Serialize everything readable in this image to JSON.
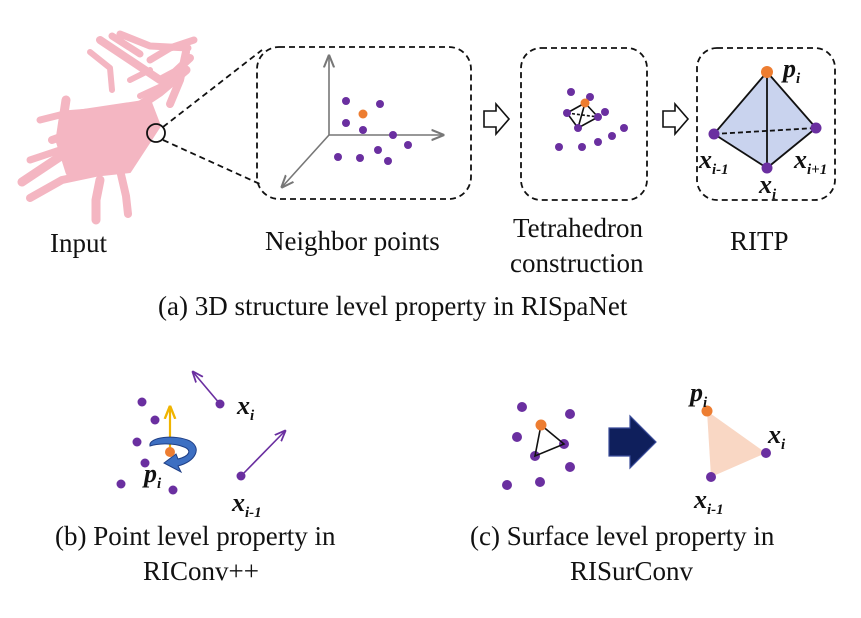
{
  "top_row": {
    "input_label": "Input",
    "neighbor_label": "Neighbor points",
    "tetra_label_line1": "Tetrahedron",
    "tetra_label_line2": "construction",
    "ritp_label": "RITP",
    "caption": "(a) 3D structure level property in RISpaNet"
  },
  "panel_b": {
    "caption_line1": "(b) Point level property in",
    "caption_line2": "RIConv++"
  },
  "panel_c": {
    "caption_line1": "(c) Surface level property in",
    "caption_line2": "RISurConv"
  },
  "symbols": {
    "p": "p",
    "x": "x",
    "sub_i": "i",
    "sub_i_minus_1": "i-1",
    "sub_i_plus_1": "i+1"
  },
  "colors": {
    "point": "#6a2fa0",
    "center_point": "#ed7d31",
    "point_cloud": "#f4b6c2",
    "tetra_fill": "#c9d3ee",
    "triangle_fill": "#f9d7c4",
    "arrow_navy": "#0f1f5c",
    "normal_yellow": "#f0b400",
    "rotation_blue": "#3d6fc2"
  },
  "icons": [
    "hollow-right-arrow-icon",
    "solid-navy-arrow-icon",
    "rotation-arrow-icon",
    "normal-vector-arrow-icon"
  ]
}
